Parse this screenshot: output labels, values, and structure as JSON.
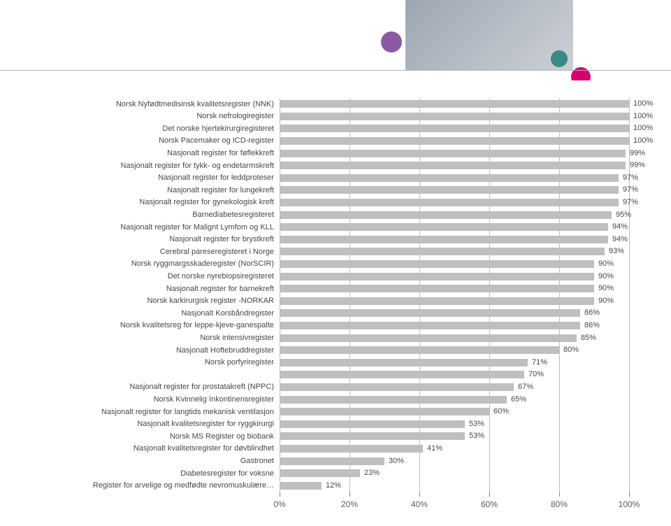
{
  "chart": {
    "type": "bar-horizontal",
    "background_color": "#ffffff",
    "bar_color": "#bfbfbf",
    "grid_color": "#bdbdbd",
    "text_color": "#464646",
    "label_fontsize": 11,
    "value_fontsize": 11,
    "axis_fontsize": 12,
    "x_min": 0,
    "x_max": 100,
    "x_tick_step": 20,
    "x_ticks": [
      {
        "v": 0,
        "label": "0%"
      },
      {
        "v": 20,
        "label": "20%"
      },
      {
        "v": 40,
        "label": "40%"
      },
      {
        "v": 60,
        "label": "60%"
      },
      {
        "v": 80,
        "label": "80%"
      },
      {
        "v": 100,
        "label": "100%"
      }
    ],
    "rows": [
      {
        "label": "Norsk Nyfødtmedisinsk kvalitetsregister (NNK)",
        "value": 100,
        "value_label": "100%"
      },
      {
        "label": "Norsk nefrologiregister",
        "value": 100,
        "value_label": "100%"
      },
      {
        "label": "Det norske hjertekirurgiregisteret",
        "value": 100,
        "value_label": "100%"
      },
      {
        "label": "Norsk Pacemaker og ICD-register",
        "value": 100,
        "value_label": "100%"
      },
      {
        "label": "Nasjonalt register for føflekkreft",
        "value": 99,
        "value_label": "99%"
      },
      {
        "label": "Nasjonalt register for tykk- og endetarmskreft",
        "value": 99,
        "value_label": "99%"
      },
      {
        "label": "Nasjonalt register for leddproteser",
        "value": 97,
        "value_label": "97%"
      },
      {
        "label": "Nasjonalt register for lungekreft",
        "value": 97,
        "value_label": "97%"
      },
      {
        "label": "Nasjonalt register for gynekologisk kreft",
        "value": 97,
        "value_label": "97%"
      },
      {
        "label": "Barnediabetesregisteret",
        "value": 95,
        "value_label": "95%"
      },
      {
        "label": "Nasjonalt register for Malignt Lymfom og KLL",
        "value": 94,
        "value_label": "94%"
      },
      {
        "label": "Nasjonalt register for brystkreft",
        "value": 94,
        "value_label": "94%"
      },
      {
        "label": "Cerebral pareseregisteret i Norge",
        "value": 93,
        "value_label": "93%"
      },
      {
        "label": "Norsk ryggmargsskaderegister (NorSCIR)",
        "value": 90,
        "value_label": "90%"
      },
      {
        "label": "Det norske nyrebiopsiregisteret",
        "value": 90,
        "value_label": "90%"
      },
      {
        "label": "Nasjonalt register for barnekreft",
        "value": 90,
        "value_label": "90%"
      },
      {
        "label": "Norsk karkirurgisk register -NORKAR",
        "value": 90,
        "value_label": "90%"
      },
      {
        "label": "Nasjonalt Korsbåndregister",
        "value": 86,
        "value_label": "86%"
      },
      {
        "label": "Norsk kvalitetsreg for leppe-kjeve-ganespalte",
        "value": 86,
        "value_label": "86%"
      },
      {
        "label": "Norsk intensivregister",
        "value": 85,
        "value_label": "85%"
      },
      {
        "label": "Nasjonalt Hoftebruddregister",
        "value": 80,
        "value_label": "80%"
      },
      {
        "label": "Norsk porfyriregister",
        "value": 71,
        "value_label": "71%"
      },
      {
        "label": "",
        "value": 70,
        "value_label": "70%"
      },
      {
        "label": "Nasjonalt register for prostatakreft (NPPC)",
        "value": 67,
        "value_label": "67%"
      },
      {
        "label": "Norsk Kvinnelig Inkontinensregister",
        "value": 65,
        "value_label": "65%"
      },
      {
        "label": "Nasjonalt register for langtids mekanisk ventilasjon",
        "value": 60,
        "value_label": "60%"
      },
      {
        "label": "Nasjonalt kvalitetsregister for ryggkirurgi",
        "value": 53,
        "value_label": "53%"
      },
      {
        "label": "Norsk MS Register og biobank",
        "value": 53,
        "value_label": "53%"
      },
      {
        "label": "Nasjonalt kvalitetsregister for døvblindhet",
        "value": 41,
        "value_label": "41%"
      },
      {
        "label": "Gastronet",
        "value": 30,
        "value_label": "30%"
      },
      {
        "label": "Diabetesregister for voksne",
        "value": 23,
        "value_label": "23%"
      },
      {
        "label": "Register for arvelige og medfødte nevromuskulære…",
        "value": 12,
        "value_label": "12%"
      }
    ]
  },
  "header": {
    "accent_dots": [
      {
        "name": "purple",
        "color": "#8a5aa5"
      },
      {
        "name": "teal",
        "color": "#3a8888"
      },
      {
        "name": "pink",
        "color": "#d6006c"
      }
    ]
  }
}
